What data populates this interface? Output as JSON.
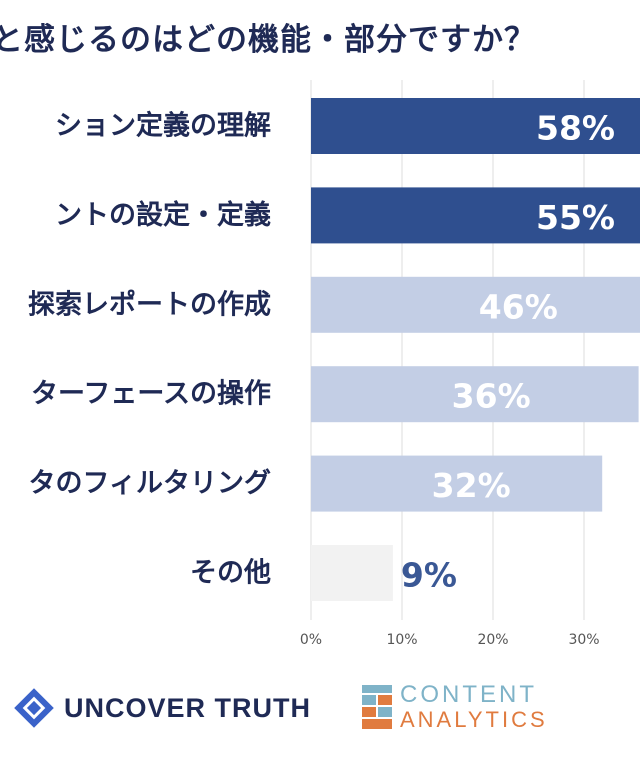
{
  "chart_data": {
    "type": "bar",
    "orientation": "horizontal",
    "title": "と感じるのはどの機能・部分ですか？",
    "categories": [
      "ション定義の理解",
      "ントの設定・定義",
      "探索レポートの作成",
      "ターフェースの操作",
      "タのフィルタリング",
      "その他"
    ],
    "values": [
      58,
      55,
      46,
      36,
      32,
      9
    ],
    "value_labels": [
      "58%",
      "55%",
      "46%",
      "36%",
      "32%",
      "9%"
    ],
    "xlim": [
      0,
      35
    ],
    "x_ticks": [
      0,
      10,
      20,
      30
    ],
    "x_tick_labels": [
      "0%",
      "10%",
      "20%",
      "30%"
    ],
    "grid": true,
    "colors": {
      "dark_bar": "#2f4f8f",
      "light_bar": "#c3cee5",
      "other_bar": "#f2f2f2",
      "other_label": "#3a5895",
      "bar_label": "#ffffff",
      "gridline": "#dddddd"
    },
    "bar_styles": [
      "dark",
      "dark",
      "light",
      "light",
      "light",
      "other"
    ]
  },
  "logos": {
    "uncover": {
      "text": "UNCOVER TRUTH"
    },
    "content_analytics": {
      "line1": "CONTENT",
      "line2": "ANALYTICS"
    }
  }
}
